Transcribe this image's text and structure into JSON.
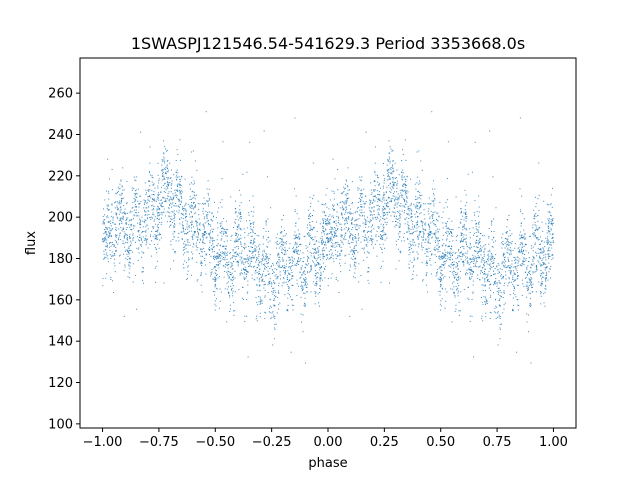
{
  "chart_data": {
    "type": "scatter",
    "title": "1SWASPJ121546.54-541629.3 Period 3353668.0s",
    "xlabel": "phase",
    "ylabel": "flux",
    "xlim": [
      -1.1,
      1.1
    ],
    "ylim": [
      98,
      277
    ],
    "xticks": [
      -1.0,
      -0.75,
      -0.5,
      -0.25,
      0.0,
      0.25,
      0.5,
      0.75,
      1.0
    ],
    "xtick_labels": [
      "−1.00",
      "−0.75",
      "−0.50",
      "−0.25",
      "0.00",
      "0.25",
      "0.50",
      "0.75",
      "1.00"
    ],
    "yticks": [
      100,
      120,
      140,
      160,
      180,
      200,
      220,
      240,
      260
    ],
    "ytick_labels": [
      "100",
      "120",
      "140",
      "160",
      "180",
      "200",
      "220",
      "240",
      "260"
    ],
    "grid": false,
    "point_color": "#1f77b4",
    "series": [
      {
        "phase_range": [
          -1.0,
          1.0
        ],
        "period_repeat": 1.0,
        "binned_flux": [
          {
            "phase": 0.0,
            "flux": 182
          },
          {
            "phase": 0.05,
            "flux": 197
          },
          {
            "phase": 0.1,
            "flux": 193
          },
          {
            "phase": 0.15,
            "flux": 195
          },
          {
            "phase": 0.2,
            "flux": 200
          },
          {
            "phase": 0.25,
            "flux": 205
          },
          {
            "phase": 0.3,
            "flux": 212
          },
          {
            "phase": 0.35,
            "flux": 200
          },
          {
            "phase": 0.4,
            "flux": 196
          },
          {
            "phase": 0.45,
            "flux": 192
          },
          {
            "phase": 0.5,
            "flux": 186
          },
          {
            "phase": 0.55,
            "flux": 178
          },
          {
            "phase": 0.6,
            "flux": 182
          },
          {
            "phase": 0.65,
            "flux": 183
          },
          {
            "phase": 0.7,
            "flux": 174
          },
          {
            "phase": 0.75,
            "flux": 172
          },
          {
            "phase": 0.8,
            "flux": 178
          },
          {
            "phase": 0.85,
            "flux": 177
          },
          {
            "phase": 0.9,
            "flux": 180
          },
          {
            "phase": 0.95,
            "flux": 182
          },
          {
            "phase": 1.0,
            "flux": 182
          }
        ]
      }
    ]
  }
}
